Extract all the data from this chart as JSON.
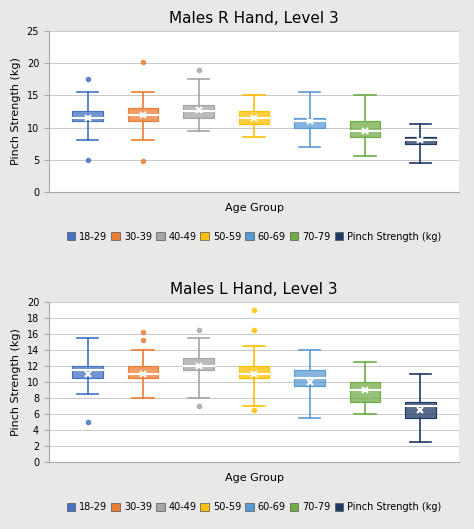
{
  "top_chart": {
    "title": "Males R Hand, Level 3",
    "ylabel": "Pinch Strength (kg)",
    "xlabel": "Age Group",
    "ylim": [
      0,
      25
    ],
    "yticks": [
      0,
      5,
      10,
      15,
      20,
      25
    ],
    "boxes": [
      {
        "label": "18-29",
        "color": "#4472C4",
        "whislo": 8.0,
        "q1": 11.0,
        "med": 11.5,
        "q3": 12.5,
        "whishi": 15.5,
        "mean": 11.5,
        "fliers_above": [
          17.5
        ],
        "fliers_below": [
          5.0
        ]
      },
      {
        "label": "30-39",
        "color": "#ED7D31",
        "whislo": 8.0,
        "q1": 11.0,
        "med": 12.0,
        "q3": 13.0,
        "whishi": 15.5,
        "mean": 12.0,
        "fliers_above": [
          20.3
        ],
        "fliers_below": [
          4.8
        ]
      },
      {
        "label": "40-49",
        "color": "#A5A5A5",
        "whislo": 9.5,
        "q1": 11.5,
        "med": 12.5,
        "q3": 13.5,
        "whishi": 17.5,
        "mean": 12.8,
        "fliers_above": [
          19.0
        ],
        "fliers_below": []
      },
      {
        "label": "50-59",
        "color": "#FFC000",
        "whislo": 8.5,
        "q1": 10.5,
        "med": 11.5,
        "q3": 12.5,
        "whishi": 15.0,
        "mean": 11.5,
        "fliers_above": [],
        "fliers_below": []
      },
      {
        "label": "60-69",
        "color": "#5B9BD5",
        "whislo": 7.0,
        "q1": 10.0,
        "med": 11.0,
        "q3": 11.5,
        "whishi": 15.5,
        "mean": 11.0,
        "fliers_above": [],
        "fliers_below": []
      },
      {
        "label": "70-79",
        "color": "#70AD47",
        "whislo": 5.5,
        "q1": 8.5,
        "med": 9.5,
        "q3": 11.0,
        "whishi": 15.0,
        "mean": 9.5,
        "fliers_above": [],
        "fliers_below": []
      },
      {
        "label": "Pinch Strength (kg)",
        "color": "#1F3864",
        "whislo": 4.5,
        "q1": 7.5,
        "med": 8.0,
        "q3": 8.5,
        "whishi": 10.5,
        "mean": 8.0,
        "fliers_above": [],
        "fliers_below": []
      }
    ]
  },
  "bottom_chart": {
    "title": "Males L Hand, Level 3",
    "ylabel": "Pinch Strength (kg)",
    "xlabel": "Age Group",
    "ylim": [
      0,
      20
    ],
    "yticks": [
      0,
      2,
      4,
      6,
      8,
      10,
      12,
      14,
      16,
      18,
      20
    ],
    "boxes": [
      {
        "label": "18-29",
        "color": "#4472C4",
        "whislo": 8.5,
        "q1": 10.5,
        "med": 11.5,
        "q3": 12.0,
        "whishi": 15.5,
        "mean": 11.0,
        "fliers_above": [],
        "fliers_below": [
          5.0
        ]
      },
      {
        "label": "30-39",
        "color": "#ED7D31",
        "whislo": 8.0,
        "q1": 10.5,
        "med": 11.0,
        "q3": 12.0,
        "whishi": 14.0,
        "mean": 11.0,
        "fliers_above": [
          16.3,
          15.3
        ],
        "fliers_below": []
      },
      {
        "label": "40-49",
        "color": "#A5A5A5",
        "whislo": 8.0,
        "q1": 11.5,
        "med": 12.0,
        "q3": 13.0,
        "whishi": 15.5,
        "mean": 12.0,
        "fliers_above": [
          16.5
        ],
        "fliers_below": [
          7.0
        ]
      },
      {
        "label": "50-59",
        "color": "#FFC000",
        "whislo": 7.0,
        "q1": 10.5,
        "med": 11.0,
        "q3": 12.0,
        "whishi": 14.5,
        "mean": 11.0,
        "fliers_above": [
          19.0,
          16.5
        ],
        "fliers_below": [
          6.5
        ]
      },
      {
        "label": "60-69",
        "color": "#5B9BD5",
        "whislo": 5.5,
        "q1": 9.5,
        "med": 10.5,
        "q3": 11.5,
        "whishi": 14.0,
        "mean": 10.0,
        "fliers_above": [],
        "fliers_below": []
      },
      {
        "label": "70-79",
        "color": "#70AD47",
        "whislo": 6.0,
        "q1": 7.5,
        "med": 9.0,
        "q3": 10.0,
        "whishi": 12.5,
        "mean": 9.0,
        "fliers_above": [],
        "fliers_below": []
      },
      {
        "label": "Pinch Strength (kg)",
        "color": "#1F3864",
        "whislo": 2.5,
        "q1": 5.5,
        "med": 7.0,
        "q3": 7.5,
        "whishi": 11.0,
        "mean": 6.5,
        "fliers_above": [],
        "fliers_below": []
      }
    ]
  },
  "fig_bg_color": "#E8E8E8",
  "plot_bg_color": "#FFFFFF",
  "grid_color": "#C8C8C8",
  "title_fontsize": 11,
  "label_fontsize": 8,
  "tick_fontsize": 7,
  "legend_fontsize": 7
}
